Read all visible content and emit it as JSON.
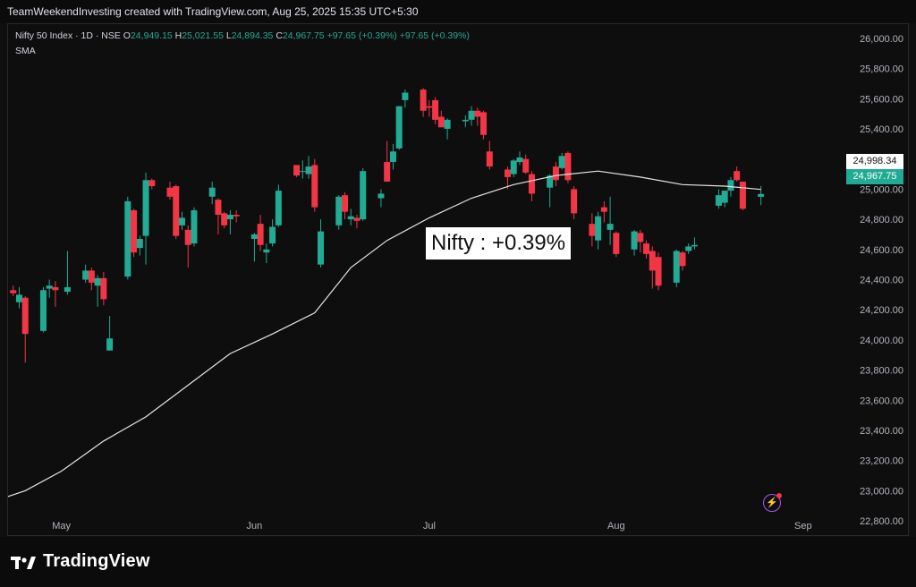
{
  "header": {
    "caption": "TeamWeekendInvesting created with TradingView.com, Aug 25, 2025 15:35 UTC+5:30"
  },
  "legend": {
    "symbol": "Nifty 50 Index · 1D · NSE",
    "open_label": "O",
    "open": "24,949.15",
    "high_label": "H",
    "high": "25,021.55",
    "low_label": "L",
    "low": "24,894.35",
    "close_label": "C",
    "close": "24,967.75",
    "change": "+97.65 (+0.39%)",
    "change2": "+97.65 (+0.39%)",
    "indicator": "SMA"
  },
  "annotation": "Nifty : +0.39%",
  "price_tags": {
    "sma": "24,998.34",
    "last": "24,967.75"
  },
  "branding": {
    "name": "TradingView"
  },
  "icons": {
    "flash": "lightning-icon",
    "logo": "tradingview-logo-icon"
  },
  "colors": {
    "up": "#22ab94",
    "down": "#f23645",
    "sma": "#e6e6e6",
    "background": "#0e0e0e"
  },
  "chart_data": {
    "type": "candlestick",
    "title": "Nifty 50 Index · 1D · NSE",
    "x_ticks": [
      "May",
      "Jun",
      "Jul",
      "Aug",
      "Sep"
    ],
    "y_ticks": [
      22800,
      23000,
      23200,
      23400,
      23600,
      23800,
      24000,
      24200,
      24400,
      24600,
      24800,
      25000,
      25200,
      25400,
      25600,
      25800,
      26000
    ],
    "y_tick_labels": [
      "22,800.00",
      "23,000.00",
      "23,200.00",
      "23,400.00",
      "23,600.00",
      "23,800.00",
      "24,000.00",
      "24,200.00",
      "24,400.00",
      "24,600.00",
      "24,800.00",
      "25,000.00",
      "25,200.00",
      "25,400.00",
      "25,600.00",
      "25,800.00",
      "26,000.00"
    ],
    "ylim": [
      22700,
      26100
    ],
    "x_range": [
      "2025-04-22",
      "2025-09-08"
    ],
    "grid": false,
    "candles": [
      {
        "d": "2025-04-23",
        "o": 24330,
        "h": 24360,
        "l": 24290,
        "c": 24310
      },
      {
        "d": "2025-04-24",
        "o": 24250,
        "h": 24350,
        "l": 24210,
        "c": 24300
      },
      {
        "d": "2025-04-25",
        "o": 24280,
        "h": 24290,
        "l": 23850,
        "c": 24040
      },
      {
        "d": "2025-04-28",
        "o": 24060,
        "h": 24350,
        "l": 24050,
        "c": 24330
      },
      {
        "d": "2025-04-29",
        "o": 24340,
        "h": 24400,
        "l": 24280,
        "c": 24360
      },
      {
        "d": "2025-04-30",
        "o": 24350,
        "h": 24390,
        "l": 24220,
        "c": 24330
      },
      {
        "d": "2025-05-02",
        "o": 24320,
        "h": 24590,
        "l": 24300,
        "c": 24350
      },
      {
        "d": "2025-05-05",
        "o": 24400,
        "h": 24500,
        "l": 24380,
        "c": 24460
      },
      {
        "d": "2025-05-06",
        "o": 24460,
        "h": 24480,
        "l": 24330,
        "c": 24380
      },
      {
        "d": "2025-05-07",
        "o": 24360,
        "h": 24430,
        "l": 24220,
        "c": 24410
      },
      {
        "d": "2025-05-08",
        "o": 24410,
        "h": 24450,
        "l": 24230,
        "c": 24270
      },
      {
        "d": "2025-05-09",
        "o": 23930,
        "h": 24160,
        "l": 23930,
        "c": 24010
      },
      {
        "d": "2025-05-12",
        "o": 24420,
        "h": 24950,
        "l": 24400,
        "c": 24920
      },
      {
        "d": "2025-05-13",
        "o": 24860,
        "h": 24870,
        "l": 24550,
        "c": 24580
      },
      {
        "d": "2025-05-14",
        "o": 24610,
        "h": 24690,
        "l": 24560,
        "c": 24670
      },
      {
        "d": "2025-05-15",
        "o": 24690,
        "h": 25110,
        "l": 24500,
        "c": 25060
      },
      {
        "d": "2025-05-16",
        "o": 25060,
        "h": 25070,
        "l": 25000,
        "c": 25020
      },
      {
        "d": "2025-05-19",
        "o": 25010,
        "h": 25050,
        "l": 24930,
        "c": 24950
      },
      {
        "d": "2025-05-20",
        "o": 25020,
        "h": 25030,
        "l": 24670,
        "c": 24690
      },
      {
        "d": "2025-05-21",
        "o": 24760,
        "h": 24850,
        "l": 24730,
        "c": 24810
      },
      {
        "d": "2025-05-22",
        "o": 24730,
        "h": 24760,
        "l": 24480,
        "c": 24630
      },
      {
        "d": "2025-05-23",
        "o": 24640,
        "h": 24880,
        "l": 24620,
        "c": 24860
      },
      {
        "d": "2025-05-26",
        "o": 24950,
        "h": 25050,
        "l": 24900,
        "c": 25010
      },
      {
        "d": "2025-05-27",
        "o": 24930,
        "h": 24940,
        "l": 24700,
        "c": 24830
      },
      {
        "d": "2025-05-28",
        "o": 24840,
        "h": 24850,
        "l": 24740,
        "c": 24760
      },
      {
        "d": "2025-05-29",
        "o": 24800,
        "h": 24860,
        "l": 24700,
        "c": 24830
      },
      {
        "d": "2025-05-30",
        "o": 24830,
        "h": 24860,
        "l": 24780,
        "c": 24820
      },
      {
        "d": "2025-06-02",
        "o": 24670,
        "h": 24710,
        "l": 24520,
        "c": 24700
      },
      {
        "d": "2025-06-03",
        "o": 24770,
        "h": 24830,
        "l": 24590,
        "c": 24630
      },
      {
        "d": "2025-06-04",
        "o": 24580,
        "h": 24640,
        "l": 24510,
        "c": 24600
      },
      {
        "d": "2025-06-05",
        "o": 24640,
        "h": 24800,
        "l": 24620,
        "c": 24750
      },
      {
        "d": "2025-06-06",
        "o": 24760,
        "h": 25030,
        "l": 24750,
        "c": 24990
      },
      {
        "d": "2025-06-09",
        "o": 25160,
        "h": 25160,
        "l": 25080,
        "c": 25090
      },
      {
        "d": "2025-06-10",
        "o": 25120,
        "h": 25190,
        "l": 25070,
        "c": 25120
      },
      {
        "d": "2025-06-11",
        "o": 25100,
        "h": 25220,
        "l": 25070,
        "c": 25150
      },
      {
        "d": "2025-06-12",
        "o": 25160,
        "h": 25200,
        "l": 24850,
        "c": 24880
      },
      {
        "d": "2025-06-13",
        "o": 24500,
        "h": 24800,
        "l": 24480,
        "c": 24720
      },
      {
        "d": "2025-06-16",
        "o": 24760,
        "h": 24960,
        "l": 24730,
        "c": 24950
      },
      {
        "d": "2025-06-17",
        "o": 24960,
        "h": 24980,
        "l": 24800,
        "c": 24850
      },
      {
        "d": "2025-06-18",
        "o": 24800,
        "h": 24870,
        "l": 24760,
        "c": 24820
      },
      {
        "d": "2025-06-19",
        "o": 24810,
        "h": 24830,
        "l": 24740,
        "c": 24790
      },
      {
        "d": "2025-06-20",
        "o": 24800,
        "h": 25140,
        "l": 24790,
        "c": 25120
      },
      {
        "d": "2025-06-23",
        "o": 24940,
        "h": 25000,
        "l": 24880,
        "c": 24970
      },
      {
        "d": "2025-06-24",
        "o": 25180,
        "h": 25320,
        "l": 25050,
        "c": 25050
      },
      {
        "d": "2025-06-25",
        "o": 25180,
        "h": 25300,
        "l": 25130,
        "c": 25250
      },
      {
        "d": "2025-06-26",
        "o": 25270,
        "h": 25550,
        "l": 25260,
        "c": 25550
      },
      {
        "d": "2025-06-27",
        "o": 25590,
        "h": 25660,
        "l": 25540,
        "c": 25640
      },
      {
        "d": "2025-06-30",
        "o": 25660,
        "h": 25670,
        "l": 25480,
        "c": 25520
      },
      {
        "d": "2025-07-01",
        "o": 25550,
        "h": 25590,
        "l": 25480,
        "c": 25540
      },
      {
        "d": "2025-07-02",
        "o": 25590,
        "h": 25610,
        "l": 25430,
        "c": 25460
      },
      {
        "d": "2025-07-03",
        "o": 25480,
        "h": 25520,
        "l": 25410,
        "c": 25410
      },
      {
        "d": "2025-07-04",
        "o": 25400,
        "h": 25470,
        "l": 25330,
        "c": 25460
      },
      {
        "d": "2025-07-07",
        "o": 25450,
        "h": 25490,
        "l": 25410,
        "c": 25460
      },
      {
        "d": "2025-07-08",
        "o": 25460,
        "h": 25550,
        "l": 25420,
        "c": 25520
      },
      {
        "d": "2025-07-09",
        "o": 25520,
        "h": 25540,
        "l": 25420,
        "c": 25480
      },
      {
        "d": "2025-07-10",
        "o": 25510,
        "h": 25520,
        "l": 25330,
        "c": 25360
      },
      {
        "d": "2025-07-11",
        "o": 25250,
        "h": 25320,
        "l": 25130,
        "c": 25150
      },
      {
        "d": "2025-07-14",
        "o": 25130,
        "h": 25150,
        "l": 25000,
        "c": 25080
      },
      {
        "d": "2025-07-15",
        "o": 25100,
        "h": 25200,
        "l": 25080,
        "c": 25190
      },
      {
        "d": "2025-07-16",
        "o": 25180,
        "h": 25250,
        "l": 25160,
        "c": 25210
      },
      {
        "d": "2025-07-17",
        "o": 25200,
        "h": 25230,
        "l": 25100,
        "c": 25110
      },
      {
        "d": "2025-07-18",
        "o": 25100,
        "h": 25120,
        "l": 24920,
        "c": 24970
      },
      {
        "d": "2025-07-21",
        "o": 25010,
        "h": 25100,
        "l": 24880,
        "c": 25090
      },
      {
        "d": "2025-07-22",
        "o": 25150,
        "h": 25180,
        "l": 25020,
        "c": 25060
      },
      {
        "d": "2025-07-23",
        "o": 25140,
        "h": 25240,
        "l": 25130,
        "c": 25220
      },
      {
        "d": "2025-07-24",
        "o": 25240,
        "h": 25250,
        "l": 25040,
        "c": 25060
      },
      {
        "d": "2025-07-25",
        "o": 25000,
        "h": 25020,
        "l": 24800,
        "c": 24840
      },
      {
        "d": "2025-07-28",
        "o": 24770,
        "h": 24840,
        "l": 24620,
        "c": 24690
      },
      {
        "d": "2025-07-29",
        "o": 24660,
        "h": 24850,
        "l": 24600,
        "c": 24820
      },
      {
        "d": "2025-07-30",
        "o": 24880,
        "h": 24920,
        "l": 24780,
        "c": 24850
      },
      {
        "d": "2025-07-31",
        "o": 24730,
        "h": 24950,
        "l": 24630,
        "c": 24770
      },
      {
        "d": "2025-08-01",
        "o": 24710,
        "h": 24720,
        "l": 24550,
        "c": 24570
      },
      {
        "d": "2025-08-04",
        "o": 24600,
        "h": 24730,
        "l": 24560,
        "c": 24720
      },
      {
        "d": "2025-08-05",
        "o": 24710,
        "h": 24730,
        "l": 24580,
        "c": 24650
      },
      {
        "d": "2025-08-06",
        "o": 24640,
        "h": 24660,
        "l": 24540,
        "c": 24570
      },
      {
        "d": "2025-08-07",
        "o": 24590,
        "h": 24620,
        "l": 24340,
        "c": 24460
      },
      {
        "d": "2025-08-08",
        "o": 24550,
        "h": 24580,
        "l": 24330,
        "c": 24360
      },
      {
        "d": "2025-08-11",
        "o": 24380,
        "h": 24600,
        "l": 24350,
        "c": 24590
      },
      {
        "d": "2025-08-12",
        "o": 24580,
        "h": 24590,
        "l": 24460,
        "c": 24490
      },
      {
        "d": "2025-08-13",
        "o": 24590,
        "h": 24640,
        "l": 24570,
        "c": 24620
      },
      {
        "d": "2025-08-14",
        "o": 24620,
        "h": 24680,
        "l": 24600,
        "c": 24630
      },
      {
        "d": "2025-08-18",
        "o": 24890,
        "h": 25000,
        "l": 24870,
        "c": 24960
      },
      {
        "d": "2025-08-19",
        "o": 24910,
        "h": 24990,
        "l": 24880,
        "c": 24990
      },
      {
        "d": "2025-08-20",
        "o": 24990,
        "h": 25080,
        "l": 24950,
        "c": 25060
      },
      {
        "d": "2025-08-21",
        "o": 25120,
        "h": 25150,
        "l": 25050,
        "c": 25060
      },
      {
        "d": "2025-08-22",
        "o": 25050,
        "h": 25050,
        "l": 24860,
        "c": 24870
      },
      {
        "d": "2025-08-25",
        "o": 24949.15,
        "h": 25021.55,
        "l": 24894.35,
        "c": 24967.75
      }
    ],
    "sma": [
      {
        "d": "2025-04-22",
        "v": 22960
      },
      {
        "d": "2025-04-25",
        "v": 23000
      },
      {
        "d": "2025-05-01",
        "v": 23130
      },
      {
        "d": "2025-05-08",
        "v": 23330
      },
      {
        "d": "2025-05-15",
        "v": 23490
      },
      {
        "d": "2025-05-22",
        "v": 23700
      },
      {
        "d": "2025-05-29",
        "v": 23910
      },
      {
        "d": "2025-06-05",
        "v": 24040
      },
      {
        "d": "2025-06-12",
        "v": 24180
      },
      {
        "d": "2025-06-18",
        "v": 24480
      },
      {
        "d": "2025-06-24",
        "v": 24660
      },
      {
        "d": "2025-07-01",
        "v": 24810
      },
      {
        "d": "2025-07-08",
        "v": 24940
      },
      {
        "d": "2025-07-15",
        "v": 25030
      },
      {
        "d": "2025-07-22",
        "v": 25090
      },
      {
        "d": "2025-07-29",
        "v": 25120
      },
      {
        "d": "2025-08-05",
        "v": 25080
      },
      {
        "d": "2025-08-12",
        "v": 25030
      },
      {
        "d": "2025-08-19",
        "v": 25020
      },
      {
        "d": "2025-08-25",
        "v": 24998.34
      }
    ]
  }
}
